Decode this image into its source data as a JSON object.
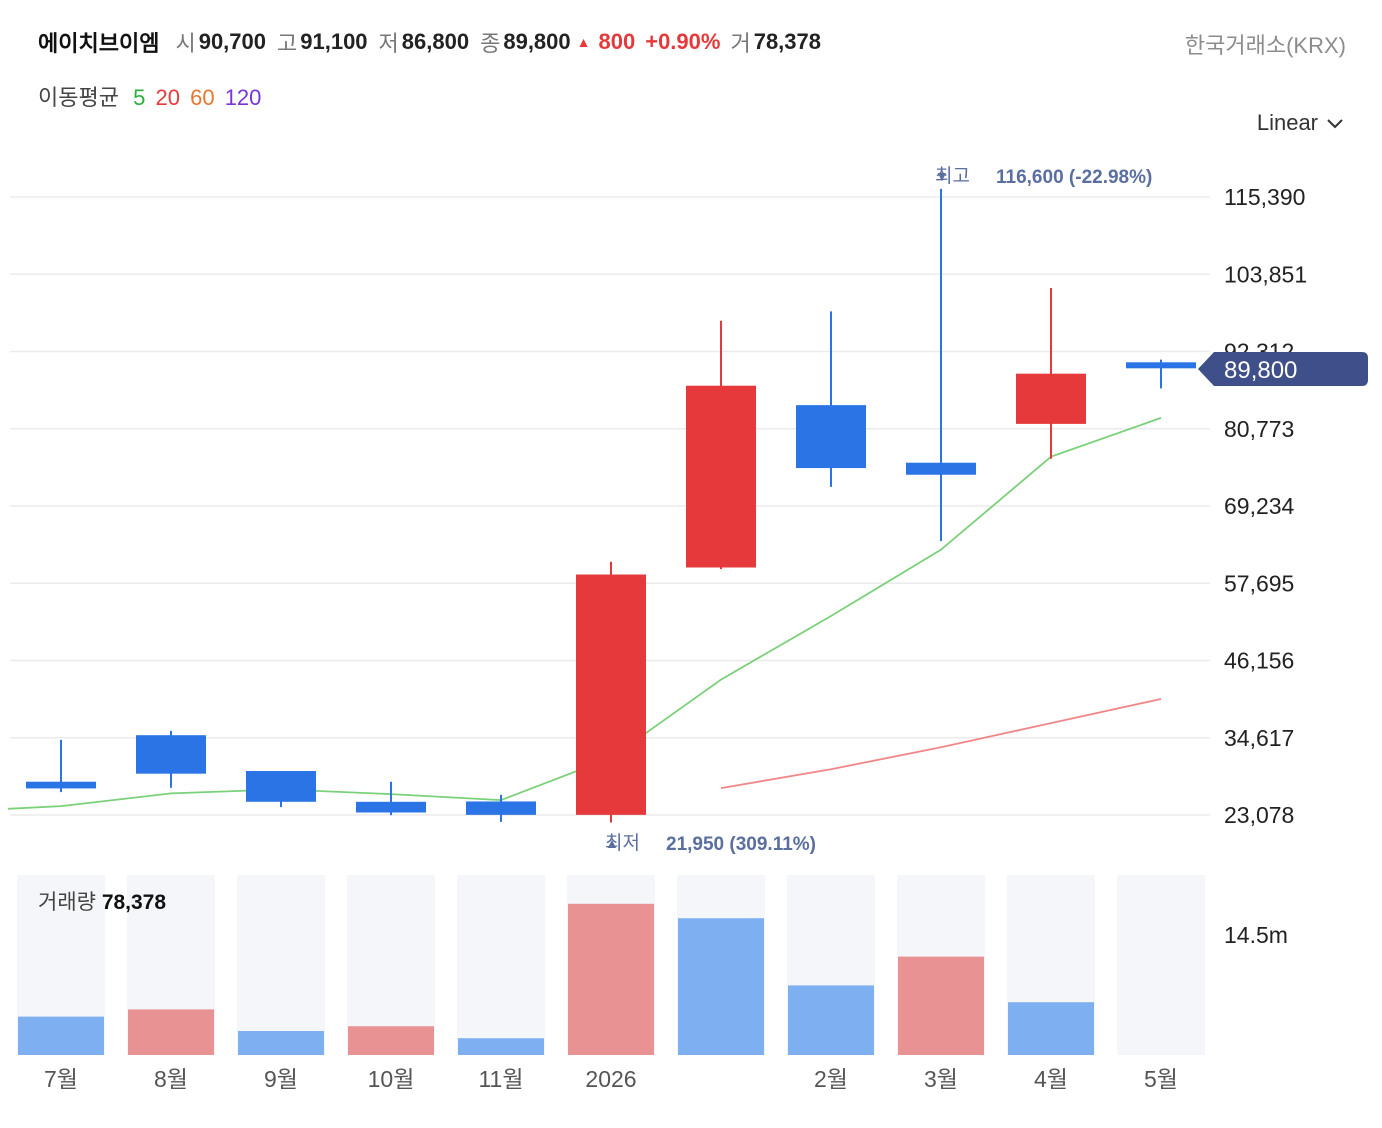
{
  "header": {
    "stock_name": "에이치브이엠",
    "open_label": "시",
    "open": "90,700",
    "high_label": "고",
    "high": "91,100",
    "low_label": "저",
    "low": "86,800",
    "close_label": "종",
    "close": "89,800",
    "change": "800",
    "change_pct": "+0.90%",
    "volume_label": "거",
    "volume": "78,378",
    "exchange": "한국거래소(KRX)",
    "up_color": "#e5393b",
    "down_color": "#2b74e6"
  },
  "moving_average": {
    "title": "이동평균",
    "periods": [
      {
        "label": "5",
        "color": "#2fae3f"
      },
      {
        "label": "20",
        "color": "#e5393b"
      },
      {
        "label": "60",
        "color": "#e8772e"
      },
      {
        "label": "120",
        "color": "#7b34d8"
      }
    ]
  },
  "scale_selector": {
    "label": "Linear"
  },
  "annotations": {
    "high_label": "최고",
    "high_value": "116,600 (-22.98%)",
    "low_label": "최저",
    "low_value": "21,950 (309.11%)"
  },
  "current_price_tag": "89,800",
  "volume_panel": {
    "title": "거래량",
    "value": "78,378",
    "axis_label": "14.5m"
  },
  "chart_data": {
    "type": "candlestick",
    "categories": [
      "7월",
      "8월",
      "9월",
      "10월",
      "11월",
      "2026",
      "",
      "2월",
      "3월",
      "4월",
      "5월"
    ],
    "x_tick_labels": [
      "7월",
      "8월",
      "9월",
      "10월",
      "11월",
      "2026",
      "2월",
      "3월",
      "4월",
      "5월"
    ],
    "candles": [
      {
        "open": 27050,
        "high": 34300,
        "low": 26500,
        "close": 28050,
        "dir": "down"
      },
      {
        "open": 35000,
        "high": 35650,
        "low": 27150,
        "close": 29250,
        "dir": "down"
      },
      {
        "open": 29650,
        "high": 29650,
        "low": 24250,
        "close": 25050,
        "dir": "down"
      },
      {
        "open": 25050,
        "high": 28050,
        "low": 23050,
        "close": 23450,
        "dir": "down"
      },
      {
        "open": 25100,
        "high": 26100,
        "low": 22050,
        "close": 23100,
        "dir": "down"
      },
      {
        "open": 23100,
        "high": 60900,
        "low": 21950,
        "close": 59000,
        "dir": "up"
      },
      {
        "open": 60050,
        "high": 96900,
        "low": 59800,
        "close": 87200,
        "dir": "up"
      },
      {
        "open": 84300,
        "high": 98300,
        "low": 72100,
        "close": 74900,
        "dir": "down"
      },
      {
        "open": 75700,
        "high": 116600,
        "low": 64000,
        "close": 73900,
        "dir": "down"
      },
      {
        "open": 81500,
        "high": 101800,
        "low": 76300,
        "close": 89000,
        "dir": "up"
      },
      {
        "open": 90700,
        "high": 91100,
        "low": 86800,
        "close": 89800,
        "dir": "down"
      }
    ],
    "ma5": [
      24000,
      24400,
      26300,
      26900,
      26200,
      25300,
      31600,
      43300,
      52800,
      62700,
      76600,
      82400
    ],
    "ma20": [
      null,
      null,
      null,
      null,
      null,
      null,
      null,
      27100,
      29900,
      33200,
      36800,
      40400
    ],
    "volume": [
      {
        "value": 1.6,
        "dir": "down"
      },
      {
        "value": 1.9,
        "dir": "up"
      },
      {
        "value": 1.0,
        "dir": "down"
      },
      {
        "value": 1.2,
        "dir": "up"
      },
      {
        "value": 0.7,
        "dir": "down"
      },
      {
        "value": 6.3,
        "dir": "up"
      },
      {
        "value": 5.7,
        "dir": "down"
      },
      {
        "value": 2.9,
        "dir": "down"
      },
      {
        "value": 4.1,
        "dir": "up"
      },
      {
        "value": 2.2,
        "dir": "down"
      },
      {
        "value": 0,
        "dir": "down"
      }
    ],
    "volume_unit": "m",
    "y_ticks": [
      "115,390",
      "103,851",
      "92,312",
      "80,773",
      "69,234",
      "57,695",
      "46,156",
      "34,617",
      "23,078"
    ],
    "y_tick_values": [
      115390,
      103851,
      92312,
      80773,
      69234,
      57695,
      46156,
      34617,
      23078
    ],
    "grid": true
  }
}
